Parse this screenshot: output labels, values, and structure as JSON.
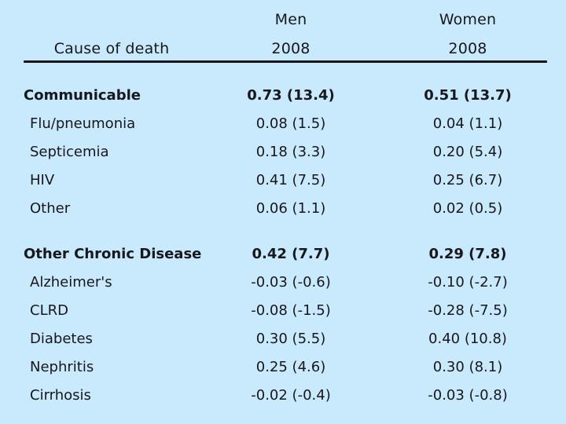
{
  "slide": {
    "background_color": "#c9e9fc",
    "text_color": "#17171c",
    "rule_color": "#15151a"
  },
  "header": {
    "cause_label": "Cause of death",
    "men_label": "Men",
    "women_label": "Women",
    "men_year": "2008",
    "women_year": "2008"
  },
  "table": {
    "rows": [
      {
        "label": "Communicable",
        "men": "0.73 (13.4)",
        "women": "0.51 (13.7)",
        "bold": true,
        "gap_before": false
      },
      {
        "label": "Flu/pneumonia",
        "men": "0.08 (1.5)",
        "women": "0.04 (1.1)",
        "bold": false,
        "gap_before": false
      },
      {
        "label": "Septicemia",
        "men": "0.18 (3.3)",
        "women": "0.20 (5.4)",
        "bold": false,
        "gap_before": false
      },
      {
        "label": "HIV",
        "men": "0.41 (7.5)",
        "women": "0.25 (6.7)",
        "bold": false,
        "gap_before": false
      },
      {
        "label": "Other",
        "men": "0.06 (1.1)",
        "women": "0.02 (0.5)",
        "bold": false,
        "gap_before": false
      },
      {
        "label": "Other Chronic Disease",
        "men": "0.42 (7.7)",
        "women": "0.29 (7.8)",
        "bold": true,
        "gap_before": true
      },
      {
        "label": "Alzheimer's",
        "men": "-0.03 (-0.6)",
        "women": "-0.10 (-2.7)",
        "bold": false,
        "gap_before": false
      },
      {
        "label": "CLRD",
        "men": "-0.08 (-1.5)",
        "women": "-0.28 (-7.5)",
        "bold": false,
        "gap_before": false
      },
      {
        "label": "Diabetes",
        "men": "0.30 (5.5)",
        "women": "0.40 (10.8)",
        "bold": false,
        "gap_before": false
      },
      {
        "label": "Nephritis",
        "men": "0.25 (4.6)",
        "women": "0.30 (8.1)",
        "bold": false,
        "gap_before": false
      },
      {
        "label": "Cirrhosis",
        "men": "-0.02 (-0.4)",
        "women": "-0.03 (-0.8)",
        "bold": false,
        "gap_before": false
      }
    ]
  },
  "chart_data": {
    "type": "table",
    "columns": [
      "Cause of death",
      "Men 2008",
      "Women 2008"
    ],
    "rows": [
      {
        "cause": "Communicable",
        "men_value": 0.73,
        "men_pct": 13.4,
        "women_value": 0.51,
        "women_pct": 13.7,
        "is_category": true
      },
      {
        "cause": "Flu/pneumonia",
        "men_value": 0.08,
        "men_pct": 1.5,
        "women_value": 0.04,
        "women_pct": 1.1,
        "is_category": false
      },
      {
        "cause": "Septicemia",
        "men_value": 0.18,
        "men_pct": 3.3,
        "women_value": 0.2,
        "women_pct": 5.4,
        "is_category": false
      },
      {
        "cause": "HIV",
        "men_value": 0.41,
        "men_pct": 7.5,
        "women_value": 0.25,
        "women_pct": 6.7,
        "is_category": false
      },
      {
        "cause": "Other",
        "men_value": 0.06,
        "men_pct": 1.1,
        "women_value": 0.02,
        "women_pct": 0.5,
        "is_category": false
      },
      {
        "cause": "Other Chronic Disease",
        "men_value": 0.42,
        "men_pct": 7.7,
        "women_value": 0.29,
        "women_pct": 7.8,
        "is_category": true
      },
      {
        "cause": "Alzheimer's",
        "men_value": -0.03,
        "men_pct": -0.6,
        "women_value": -0.1,
        "women_pct": -2.7,
        "is_category": false
      },
      {
        "cause": "CLRD",
        "men_value": -0.08,
        "men_pct": -1.5,
        "women_value": -0.28,
        "women_pct": -7.5,
        "is_category": false
      },
      {
        "cause": "Diabetes",
        "men_value": 0.3,
        "men_pct": 5.5,
        "women_value": 0.4,
        "women_pct": 10.8,
        "is_category": false
      },
      {
        "cause": "Nephritis",
        "men_value": 0.25,
        "men_pct": 4.6,
        "women_value": 0.3,
        "women_pct": 8.1,
        "is_category": false
      },
      {
        "cause": "Cirrhosis",
        "men_value": -0.02,
        "men_pct": -0.4,
        "women_value": -0.03,
        "women_pct": -0.8,
        "is_category": false
      }
    ]
  }
}
